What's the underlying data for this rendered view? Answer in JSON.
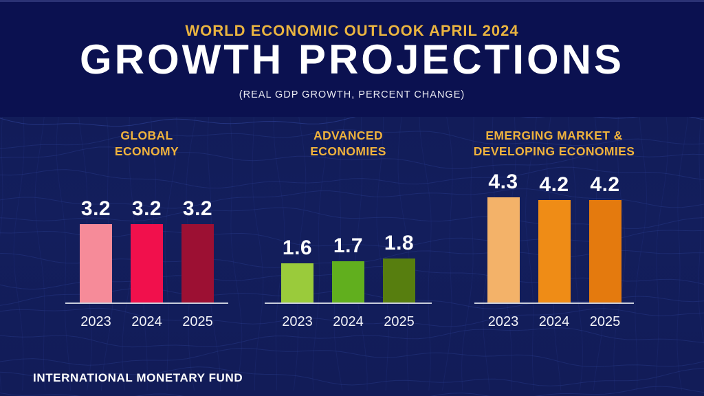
{
  "header": {
    "eyebrow": "WORLD ECONOMIC OUTLOOK APRIL 2024",
    "title": "GROWTH PROJECTIONS",
    "subtitle": "(REAL GDP GROWTH, PERCENT CHANGE)"
  },
  "footer": {
    "org": "INTERNATIONAL MONETARY FUND"
  },
  "colors": {
    "header_background": "#0b1150",
    "body_background": "#131e5c",
    "mesh_line": "#3347a0",
    "accent_gold": "#efb23d",
    "text_white": "#ffffff",
    "axis_line": "#c9cedc"
  },
  "chart_data": [
    {
      "type": "bar",
      "title": "GLOBAL\nECONOMY",
      "categories": [
        "2023",
        "2024",
        "2025"
      ],
      "values": [
        3.2,
        3.2,
        3.2
      ],
      "value_labels": [
        "3.2",
        "3.2",
        "3.2"
      ],
      "bar_colors": [
        "#f68b99",
        "#f1104c",
        "#9c1033"
      ],
      "ylim": [
        0,
        4.5
      ],
      "grid": false,
      "legend_position": "none"
    },
    {
      "type": "bar",
      "title": "ADVANCED\nECONOMIES",
      "categories": [
        "2023",
        "2024",
        "2025"
      ],
      "values": [
        1.6,
        1.7,
        1.8
      ],
      "value_labels": [
        "1.6",
        "1.7",
        "1.8"
      ],
      "bar_colors": [
        "#9acb3b",
        "#61af1e",
        "#577e0f"
      ],
      "ylim": [
        0,
        4.5
      ],
      "grid": false,
      "legend_position": "none"
    },
    {
      "type": "bar",
      "title": "EMERGING MARKET &\nDEVELOPING ECONOMIES",
      "categories": [
        "2023",
        "2024",
        "2025"
      ],
      "values": [
        4.3,
        4.2,
        4.2
      ],
      "value_labels": [
        "4.3",
        "4.2",
        "4.2"
      ],
      "bar_colors": [
        "#f3b269",
        "#ef8c16",
        "#e47a0e"
      ],
      "ylim": [
        0,
        4.5
      ],
      "grid": false,
      "legend_position": "none"
    }
  ]
}
